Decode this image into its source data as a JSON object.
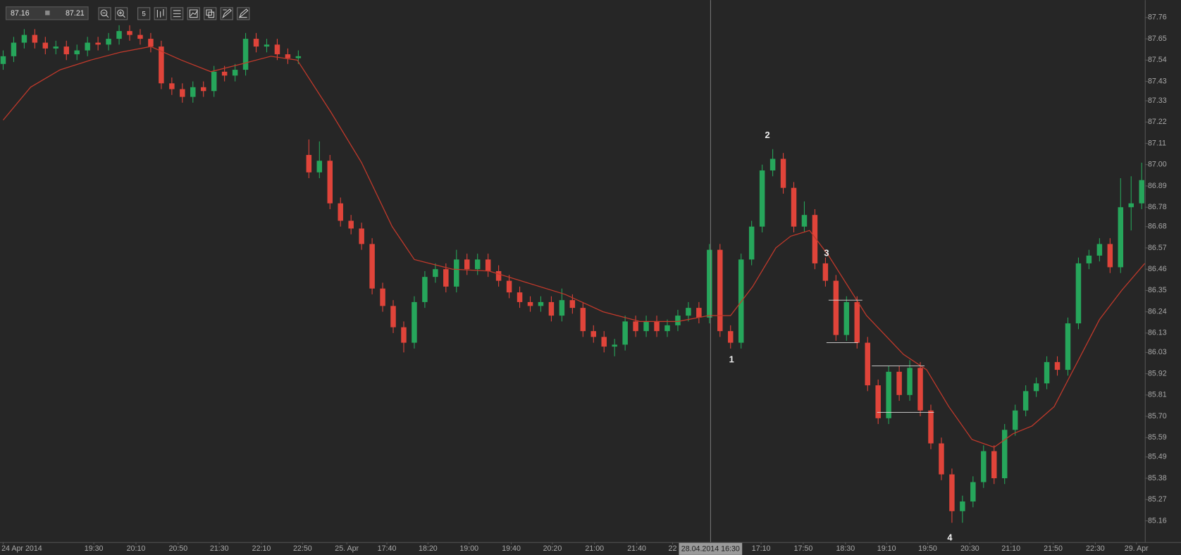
{
  "chart_data": {
    "type": "candlestick",
    "up_color": "#26a65b",
    "down_color": "#e0443a",
    "xlim": [
      -0.3,
      108.3
    ],
    "ylim": [
      85.05,
      87.85
    ],
    "open": [
      87.52,
      87.56,
      87.63,
      87.67,
      87.63,
      87.6,
      87.61,
      87.57,
      87.59,
      87.63,
      87.62,
      87.65,
      87.69,
      87.67,
      87.65,
      87.61,
      87.42,
      87.39,
      87.35,
      87.4,
      87.38,
      87.48,
      87.46,
      87.49,
      87.65,
      87.61,
      87.62,
      87.57,
      87.55,
      87.05,
      86.96,
      87.02,
      86.8,
      86.71,
      86.67,
      86.59,
      86.36,
      86.27,
      86.16,
      86.08,
      86.29,
      86.42,
      86.46,
      86.37,
      86.51,
      86.46,
      86.51,
      86.45,
      86.4,
      86.34,
      86.29,
      86.27,
      86.29,
      86.22,
      86.3,
      86.26,
      86.14,
      86.11,
      86.06,
      86.07,
      86.19,
      86.14,
      86.19,
      86.14,
      86.17,
      86.22,
      86.26,
      86.21,
      86.56,
      86.14,
      86.08,
      86.51,
      86.68,
      86.97,
      87.03,
      86.88,
      86.68,
      86.74,
      86.49,
      86.4,
      86.12,
      86.29,
      86.08,
      85.86,
      85.69,
      85.93,
      85.81,
      85.95,
      85.73,
      85.56,
      85.4,
      85.21,
      85.26,
      85.36,
      85.52,
      85.38,
      85.63,
      85.73,
      85.83,
      85.87,
      85.98,
      85.94,
      86.18,
      86.49,
      86.53,
      86.59,
      86.47,
      86.78,
      86.8
    ],
    "high": [
      87.59,
      87.66,
      87.7,
      87.7,
      87.66,
      87.64,
      87.64,
      87.62,
      87.66,
      87.66,
      87.68,
      87.72,
      87.72,
      87.7,
      87.68,
      87.64,
      87.45,
      87.42,
      87.43,
      87.43,
      87.51,
      87.51,
      87.52,
      87.68,
      87.68,
      87.65,
      87.65,
      87.6,
      87.59,
      87.13,
      87.12,
      87.05,
      86.83,
      86.74,
      86.7,
      86.62,
      86.39,
      86.3,
      86.19,
      86.32,
      86.45,
      86.49,
      86.49,
      86.56,
      86.54,
      86.54,
      86.54,
      86.48,
      86.43,
      86.37,
      86.32,
      86.32,
      86.32,
      86.36,
      86.33,
      86.29,
      86.17,
      86.14,
      86.1,
      86.22,
      86.22,
      86.22,
      86.22,
      86.2,
      86.25,
      86.29,
      86.29,
      86.59,
      86.59,
      86.17,
      86.54,
      86.71,
      87.0,
      87.08,
      87.06,
      86.91,
      86.81,
      86.77,
      86.52,
      86.43,
      86.32,
      86.32,
      86.11,
      85.89,
      85.96,
      85.96,
      85.99,
      85.98,
      85.76,
      85.59,
      85.43,
      85.29,
      85.39,
      85.55,
      85.55,
      85.66,
      85.76,
      85.86,
      85.9,
      86.01,
      86.01,
      86.21,
      86.52,
      86.56,
      86.62,
      86.62,
      86.93,
      86.94,
      87.01
    ],
    "low": [
      87.49,
      87.53,
      87.6,
      87.6,
      87.57,
      87.57,
      87.54,
      87.54,
      87.56,
      87.59,
      87.59,
      87.62,
      87.64,
      87.62,
      87.58,
      87.39,
      87.36,
      87.32,
      87.32,
      87.35,
      87.35,
      87.43,
      87.43,
      87.46,
      87.58,
      87.58,
      87.54,
      87.52,
      87.52,
      86.93,
      86.93,
      86.77,
      86.68,
      86.64,
      86.56,
      86.33,
      86.24,
      86.13,
      86.03,
      86.05,
      86.26,
      86.39,
      86.34,
      86.34,
      86.43,
      86.43,
      86.42,
      86.37,
      86.31,
      86.26,
      86.24,
      86.24,
      86.19,
      86.19,
      86.23,
      86.11,
      86.08,
      86.03,
      86.01,
      86.04,
      86.11,
      86.11,
      86.11,
      86.11,
      86.14,
      86.19,
      86.18,
      86.18,
      86.11,
      86.05,
      86.05,
      86.48,
      86.65,
      86.94,
      86.85,
      86.65,
      86.65,
      86.46,
      86.37,
      86.09,
      86.09,
      86.05,
      85.83,
      85.66,
      85.66,
      85.78,
      85.78,
      85.7,
      85.53,
      85.37,
      85.15,
      85.15,
      85.23,
      85.33,
      85.35,
      85.35,
      85.6,
      85.7,
      85.8,
      85.84,
      85.91,
      85.91,
      86.15,
      86.46,
      86.5,
      86.44,
      86.44,
      86.66,
      86.77
    ],
    "close": [
      87.56,
      87.63,
      87.67,
      87.63,
      87.6,
      87.61,
      87.57,
      87.59,
      87.63,
      87.62,
      87.65,
      87.69,
      87.67,
      87.65,
      87.61,
      87.42,
      87.39,
      87.35,
      87.4,
      87.38,
      87.48,
      87.46,
      87.49,
      87.65,
      87.61,
      87.62,
      87.57,
      87.55,
      87.56,
      86.96,
      87.02,
      86.8,
      86.71,
      86.67,
      86.59,
      86.36,
      86.27,
      86.16,
      86.08,
      86.29,
      86.42,
      86.46,
      86.37,
      86.51,
      86.46,
      86.51,
      86.45,
      86.4,
      86.34,
      86.29,
      86.27,
      86.29,
      86.22,
      86.3,
      86.26,
      86.14,
      86.11,
      86.06,
      86.07,
      86.19,
      86.14,
      86.19,
      86.14,
      86.17,
      86.22,
      86.26,
      86.21,
      86.56,
      86.14,
      86.08,
      86.51,
      86.68,
      86.97,
      87.03,
      86.88,
      86.68,
      86.74,
      86.49,
      86.4,
      86.12,
      86.29,
      86.08,
      85.86,
      85.69,
      85.93,
      85.81,
      85.95,
      85.73,
      85.56,
      85.4,
      85.21,
      85.26,
      85.36,
      85.52,
      85.38,
      85.63,
      85.73,
      85.83,
      85.87,
      85.98,
      85.94,
      86.18,
      86.49,
      86.53,
      86.59,
      86.47,
      86.78,
      86.8,
      86.92
    ],
    "moving_average": {
      "color": "#c0392b",
      "x": [
        0,
        2.6,
        5.4,
        8.3,
        11.1,
        14,
        16.9,
        19.7,
        22.6,
        25.4,
        27.9,
        31.1,
        34,
        36.9,
        39,
        42.6,
        46.1,
        49.7,
        53.3,
        56.9,
        60.4,
        64,
        66.9,
        69,
        71.1,
        73.3,
        74.7,
        76.5,
        78.3,
        81.9,
        85.4,
        87.6,
        89.7,
        91.9,
        94,
        95.8,
        97.6,
        99.7,
        101.9,
        104,
        106.1,
        108.3
      ],
      "values": [
        87.23,
        87.4,
        87.49,
        87.54,
        87.58,
        87.61,
        87.54,
        87.48,
        87.52,
        87.56,
        87.54,
        87.27,
        87.01,
        86.68,
        86.51,
        86.46,
        86.45,
        86.39,
        86.33,
        86.24,
        86.19,
        86.19,
        86.22,
        86.22,
        86.37,
        86.57,
        86.63,
        86.66,
        86.53,
        86.22,
        86.02,
        85.94,
        85.75,
        85.58,
        85.54,
        85.61,
        85.65,
        85.75,
        85.98,
        86.2,
        86.35,
        86.49
      ]
    },
    "levels": [
      {
        "value": 86.3,
        "from": 78.3,
        "to": 81.5
      },
      {
        "value": 86.08,
        "from": 78.1,
        "to": 81.1
      },
      {
        "value": 85.96,
        "from": 82.4,
        "to": 87.4
      },
      {
        "value": 85.72,
        "from": 82.9,
        "to": 88.3
      }
    ],
    "annotations": [
      {
        "text": "1",
        "x": 69.1,
        "y": 85.99
      },
      {
        "text": "2",
        "x": 72.5,
        "y": 87.15
      },
      {
        "text": "3",
        "x": 78.1,
        "y": 86.54
      },
      {
        "text": "4",
        "x": 89.8,
        "y": 85.07
      }
    ],
    "yticks": [
      87.76,
      87.65,
      87.54,
      87.43,
      87.33,
      87.22,
      87.11,
      {
        "value": 87.0,
        "label": "87.00"
      },
      86.89,
      86.78,
      86.68,
      86.57,
      86.46,
      86.35,
      86.24,
      86.13,
      86.03,
      85.92,
      85.81,
      {
        "value": 85.7,
        "label": "85.70"
      },
      85.59,
      85.49,
      85.38,
      85.27,
      85.16
    ],
    "xticks": [
      {
        "value": 0,
        "label": "24 Apr 2014"
      },
      {
        "value": 8.6,
        "label": "19:30"
      },
      {
        "value": 12.6,
        "label": "20:10"
      },
      {
        "value": 16.6,
        "label": "20:50"
      },
      {
        "value": 20.5,
        "label": "21:30"
      },
      {
        "value": 24.5,
        "label": "22:10"
      },
      {
        "value": 28.4,
        "label": "22:50"
      },
      {
        "value": 32.6,
        "label": "25. Apr"
      },
      {
        "value": 36.4,
        "label": "17:40"
      },
      {
        "value": 40.3,
        "label": "18:20"
      },
      {
        "value": 44.2,
        "label": "19:00"
      },
      {
        "value": 48.2,
        "label": "19:40"
      },
      {
        "value": 52.1,
        "label": "20:20"
      },
      {
        "value": 56.1,
        "label": "21:00"
      },
      {
        "value": 60.1,
        "label": "21:40"
      },
      {
        "value": 63.5,
        "label": "22"
      },
      {
        "value": 71.9,
        "label": "17:10"
      },
      {
        "value": 75.9,
        "label": "17:50"
      },
      {
        "value": 79.9,
        "label": "18:30"
      },
      {
        "value": 83.8,
        "label": "19:10"
      },
      {
        "value": 87.7,
        "label": "19:50"
      },
      {
        "value": 91.7,
        "label": "20:30"
      },
      {
        "value": 95.6,
        "label": "21:10"
      },
      {
        "value": 99.6,
        "label": "21:50"
      },
      {
        "value": 103.6,
        "label": "22:30"
      },
      {
        "value": 107.5,
        "label": "29. Apr"
      }
    ],
    "crosshair": {
      "value": 67.1,
      "label": "28.04.2014 16:30"
    }
  },
  "toolbar": {
    "bid": "87.16",
    "ask": "87.21",
    "interval": "5"
  }
}
